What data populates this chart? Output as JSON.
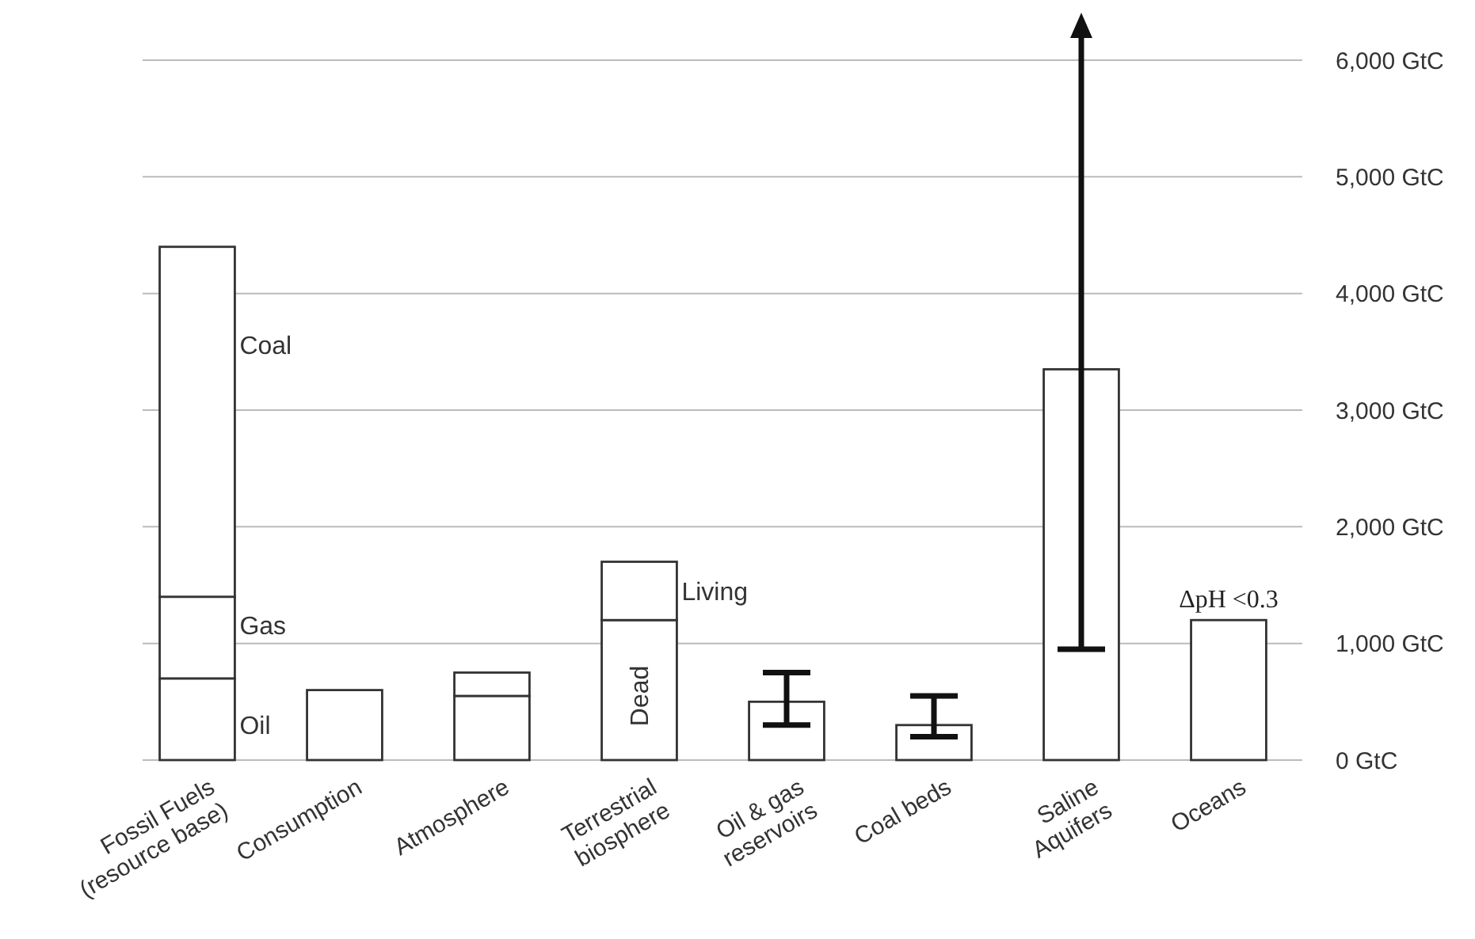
{
  "chart_data": {
    "type": "bar",
    "stacked": true,
    "categories": [
      "Fossil Fuels\n(resource base)",
      "Consumption",
      "Atmosphere",
      "Terrestrial\nbiosphere",
      "Oil & gas\nreservoirs",
      "Coal beds",
      "Saline\nAquifers",
      "Oceans"
    ],
    "series": [
      {
        "color": "#ffffff",
        "values": [
          700,
          600,
          550,
          1200,
          500,
          300,
          3350,
          1200
        ],
        "errors": [
          null,
          null,
          null,
          null,
          [
            300,
            750
          ],
          [
            200,
            550
          ],
          [
            950,
            6000
          ],
          null
        ]
      },
      {
        "color": "#ffffff",
        "values": [
          700,
          null,
          200,
          500,
          null,
          null,
          null,
          null
        ]
      },
      {
        "color": "#ffffff",
        "values": [
          3000,
          null,
          null,
          null,
          null,
          null,
          null,
          null
        ]
      }
    ],
    "ylim": [
      0,
      6000
    ],
    "yticks": [
      {
        "value": 0,
        "label": "0  GtC"
      },
      {
        "value": 1000,
        "label": "1,000 GtC"
      },
      {
        "value": 2000,
        "label": "2,000 GtC"
      },
      {
        "value": 3000,
        "label": "3,000 GtC"
      },
      {
        "value": 4000,
        "label": "4,000 GtC"
      },
      {
        "value": 5000,
        "label": "5,000 GtC"
      },
      {
        "value": 6000,
        "label": "6,000 GtC"
      }
    ],
    "grid": "y",
    "annotations": [
      "Coal",
      "Gas",
      "Oil",
      {
        "text": "Living",
        "x": "Terrestrial\nbiosphere",
        "y": 1450
      },
      {
        "text": "Dead",
        "x": "Terrestrial\nbiosphere",
        "y": 550
      },
      "ΔpH <0.3"
    ]
  }
}
